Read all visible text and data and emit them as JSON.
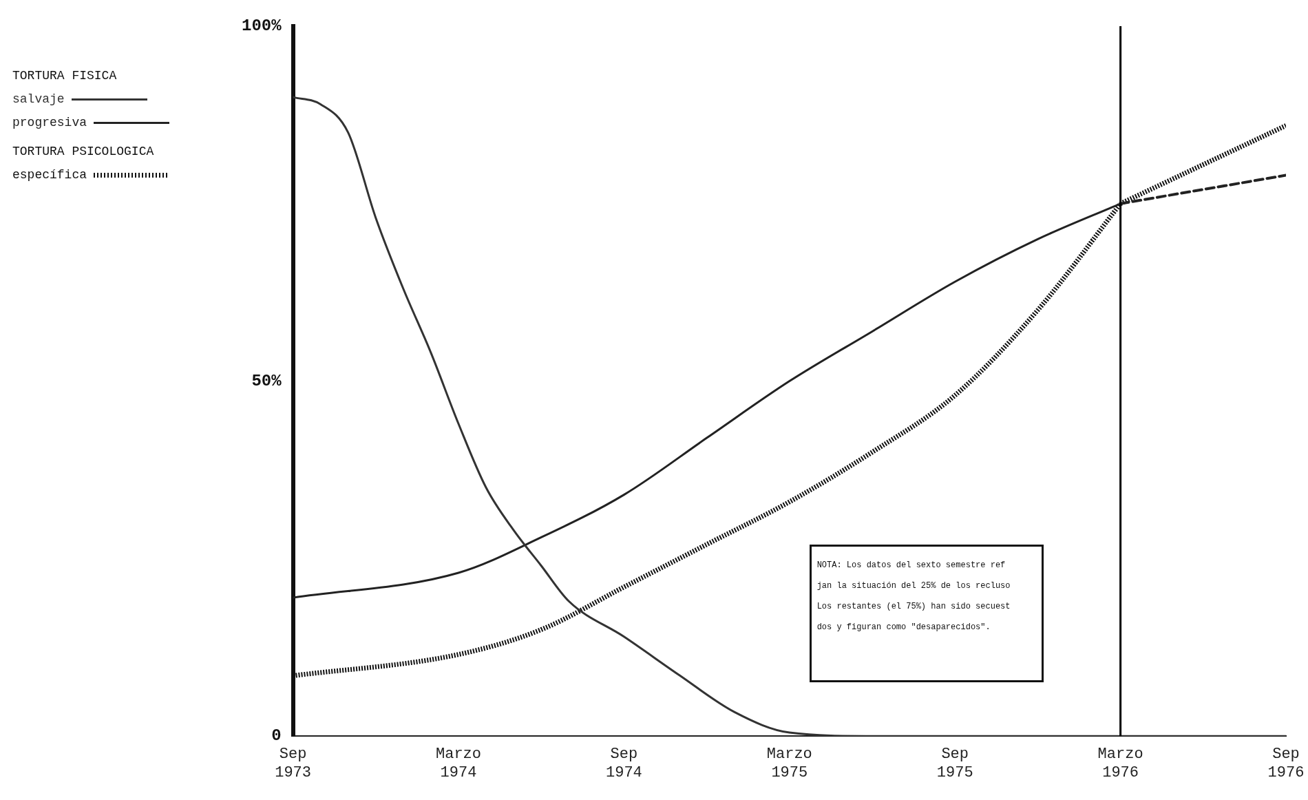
{
  "chart_data": {
    "type": "line",
    "xlim": [
      "1973-09",
      "1976-09"
    ],
    "xticks": [
      {
        "value": "1973-09",
        "label": "Sep 1973"
      },
      {
        "value": "1974-03",
        "label": "Marzo 1974"
      },
      {
        "value": "1974-09",
        "label": "Sep 1974"
      },
      {
        "value": "1975-03",
        "label": "Marzo 1975"
      },
      {
        "value": "1975-09",
        "label": "Sep 1975"
      },
      {
        "value": "1976-03",
        "label": "Marzo 1976"
      },
      {
        "value": "1976-09",
        "label": "Sep 1976"
      }
    ],
    "ylim": [
      0,
      100
    ],
    "yticks": [
      0,
      {
        "value": 50,
        "label": "50%"
      },
      {
        "value": 100,
        "label": "100%"
      }
    ],
    "grid": false,
    "legend": "top left",
    "series": [
      {
        "name": "salvaje",
        "color": "#333333",
        "line_style": "solid",
        "x": [
          "1973-09",
          "1973-10",
          "1973-11",
          "1973-12",
          "1974-01",
          "1974-02",
          "1974-03",
          "1974-04",
          "1974-05",
          "1974-06",
          "1974-07",
          "1974-09",
          "1974-11",
          "1975-01",
          "1975-03",
          "1975-06",
          "1975-09",
          "1976-03",
          "1976-09"
        ],
        "values": [
          90,
          89,
          85,
          73,
          63,
          54,
          44,
          35,
          29,
          24,
          19,
          14,
          8.6,
          3.4,
          0.5,
          0,
          0,
          0,
          0
        ]
      },
      {
        "name": "progresiva",
        "color": "#222222",
        "line_style": "solid",
        "x": [
          "1973-09",
          "1974-03",
          "1974-06",
          "1974-09",
          "1974-12",
          "1975-03",
          "1975-06",
          "1975-09",
          "1975-12",
          "1976-03"
        ],
        "values": [
          19.5,
          23,
          28,
          34,
          42,
          50,
          57,
          64,
          70,
          75
        ]
      },
      {
        "name": "específica",
        "color": "#111111",
        "line_style": "dotted",
        "x": [
          "1973-09",
          "1974-03",
          "1974-06",
          "1974-09",
          "1974-12",
          "1975-03",
          "1975-06",
          "1975-09",
          "1975-12",
          "1976-03"
        ],
        "values": [
          8.5,
          11.5,
          15,
          21,
          27,
          33,
          40,
          48,
          60,
          75
        ]
      },
      {
        "color": "#222222",
        "line_style": "dashed",
        "x": [
          "1976-03",
          "1976-09"
        ],
        "values": [
          75,
          79
        ]
      },
      {
        "color": "#111111",
        "line_style": "dotted",
        "x": [
          "1976-03",
          "1976-09"
        ],
        "values": [
          75,
          86
        ]
      }
    ],
    "ref_lines": [
      {
        "axis": "x",
        "value": "1976-03",
        "color": "#000000"
      }
    ],
    "annotations": [
      "TORTURA FISICA",
      "TORTURA PSICOLOGICA",
      "NOTA:  Los datos del sexto semestre ref\njan la situación del 25% de los recluso\nLos restantes (el 75%) han sido secuest\ndos y figuran como \"desaparecidos\"."
    ]
  }
}
